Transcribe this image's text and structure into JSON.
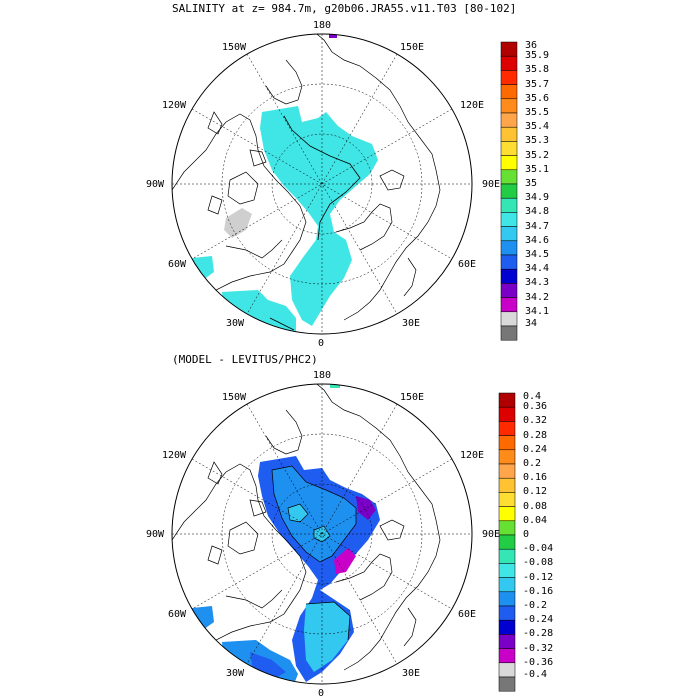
{
  "top_panel": {
    "title": "SALINITY at z= 984.7m, g20b06.JRA55.v11.T03 [80-102]",
    "lon_labels": {
      "n180": "180",
      "w150": "150W",
      "e150": "150E",
      "w120": "120W",
      "e120": "120E",
      "w90": "90W",
      "e90": "90E",
      "w60": "60W",
      "e60": "60E",
      "w30": "30W",
      "e30": "30E",
      "z0": "0"
    },
    "colorbar": {
      "labels": [
        "36",
        "35.9",
        "35.8",
        "35.7",
        "35.6",
        "35.5",
        "35.4",
        "35.3",
        "35.2",
        "35.1",
        "35",
        "34.9",
        "34.8",
        "34.7",
        "34.6",
        "34.5",
        "34.4",
        "34.3",
        "34.2",
        "34.1",
        "34"
      ],
      "colors": [
        "#b00000",
        "#dd0000",
        "#ff2a00",
        "#ff6a00",
        "#ff8c1a",
        "#ffa64d",
        "#ffc233",
        "#ffde33",
        "#ffff00",
        "#66e033",
        "#22cc44",
        "#33e6b3",
        "#40e6e6",
        "#33c8f0",
        "#1e90f0",
        "#1f5cf0",
        "#0000d0",
        "#7a00c8",
        "#c800c8",
        "#d9d9d9",
        "#777777"
      ]
    }
  },
  "bottom_panel": {
    "title": "(MODEL - LEVITUS/PHC2)",
    "lon_labels": {
      "n180": "180",
      "w150": "150W",
      "e150": "150E",
      "w120": "120W",
      "e120": "120E",
      "w90": "90W",
      "e90": "90E",
      "w60": "60W",
      "e60": "60E",
      "w30": "30W",
      "e30": "30E",
      "z0": "0"
    },
    "colorbar": {
      "labels": [
        "0.4",
        "0.36",
        "0.32",
        "0.28",
        "0.24",
        "0.2",
        "0.16",
        "0.12",
        "0.08",
        "0.04",
        "0",
        "-0.04",
        "-0.08",
        "-0.12",
        "-0.16",
        "-0.2",
        "-0.24",
        "-0.28",
        "-0.32",
        "-0.36",
        "-0.4"
      ],
      "colors": [
        "#b00000",
        "#dd0000",
        "#ff2a00",
        "#ff6a00",
        "#ff8c1a",
        "#ffa64d",
        "#ffc233",
        "#ffde33",
        "#ffff00",
        "#66e033",
        "#22cc44",
        "#33e6b3",
        "#40e6e6",
        "#33c8f0",
        "#1e90f0",
        "#1f5cf0",
        "#0000d0",
        "#7a00c8",
        "#c800c8",
        "#d9d9d9",
        "#777777"
      ]
    }
  }
}
